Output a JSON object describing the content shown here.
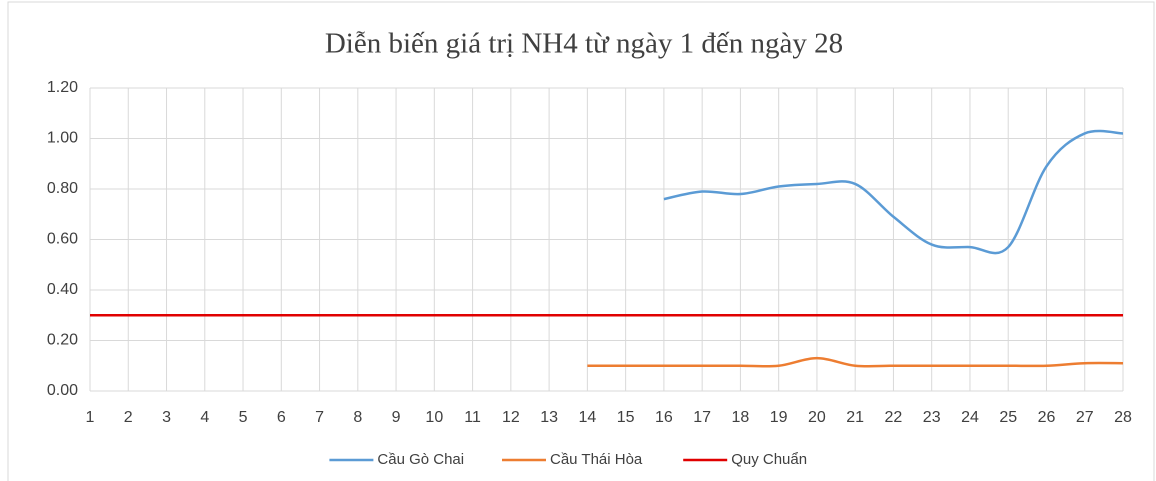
{
  "chart_data": {
    "type": "line",
    "title": "Diễn biến giá trị NH4 từ ngày  1 đến ngày  28",
    "categories": [
      1,
      2,
      3,
      4,
      5,
      6,
      7,
      8,
      9,
      10,
      11,
      12,
      13,
      14,
      15,
      16,
      17,
      18,
      19,
      20,
      21,
      22,
      23,
      24,
      25,
      26,
      27,
      28
    ],
    "series": [
      {
        "name": "Cầu Gò Chai",
        "color": "#5b9bd5",
        "values": [
          null,
          null,
          null,
          null,
          null,
          null,
          null,
          null,
          null,
          null,
          null,
          null,
          null,
          null,
          null,
          0.76,
          0.79,
          0.78,
          0.81,
          0.82,
          0.82,
          0.69,
          0.58,
          0.57,
          0.57,
          0.89,
          1.02,
          1.02
        ]
      },
      {
        "name": "Cầu Thái Hòa",
        "color": "#ed7d31",
        "values": [
          null,
          null,
          null,
          null,
          null,
          null,
          null,
          null,
          null,
          null,
          null,
          null,
          null,
          0.1,
          0.1,
          0.1,
          0.1,
          0.1,
          0.1,
          0.13,
          0.1,
          0.1,
          0.1,
          0.1,
          0.1,
          0.1,
          0.11,
          0.11
        ]
      },
      {
        "name": "Quy Chuẩn",
        "color": "#e00000",
        "values": [
          0.3,
          0.3,
          0.3,
          0.3,
          0.3,
          0.3,
          0.3,
          0.3,
          0.3,
          0.3,
          0.3,
          0.3,
          0.3,
          0.3,
          0.3,
          0.3,
          0.3,
          0.3,
          0.3,
          0.3,
          0.3,
          0.3,
          0.3,
          0.3,
          0.3,
          0.3,
          0.3,
          0.3
        ]
      }
    ],
    "ylim": [
      0,
      1.2
    ],
    "yticks": [
      {
        "value": 0,
        "label": "0.00"
      },
      {
        "value": 0.2,
        "label": "0.20"
      },
      {
        "value": 0.4,
        "label": "0.40"
      },
      {
        "value": 0.6,
        "label": "0.60"
      },
      {
        "value": 0.8,
        "label": "0.80"
      },
      {
        "value": 1.0,
        "label": "1.00"
      },
      {
        "value": 1.2,
        "label": "1.20"
      }
    ],
    "grid": true,
    "smooth": true,
    "legend": "bottom"
  }
}
